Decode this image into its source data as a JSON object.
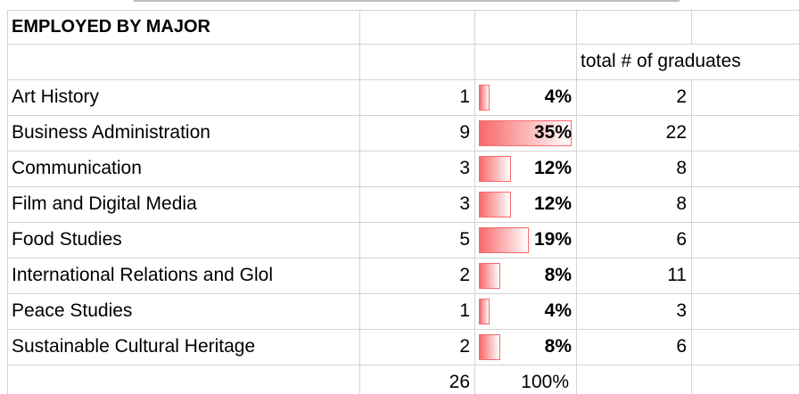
{
  "table": {
    "title": "EMPLOYED BY MAJOR",
    "header": "total # of graduates",
    "rows": [
      {
        "major": "Art History",
        "employed": 1,
        "percent": {
          "value": 4,
          "label": "4%"
        },
        "total": 2
      },
      {
        "major": "Business Administration",
        "employed": 9,
        "percent": {
          "value": 35,
          "label": "35%"
        },
        "total": 22
      },
      {
        "major": "Communication",
        "employed": 3,
        "percent": {
          "value": 12,
          "label": "12%"
        },
        "total": 8
      },
      {
        "major": "Film and Digital Media",
        "employed": 3,
        "percent": {
          "value": 12,
          "label": "12%"
        },
        "total": 8
      },
      {
        "major": "Food Studies",
        "employed": 5,
        "percent": {
          "value": 19,
          "label": "19%"
        },
        "total": 6
      },
      {
        "major": "International Relations and Glol",
        "employed": 2,
        "percent": {
          "value": 8,
          "label": "8%"
        },
        "total": 11
      },
      {
        "major": "Peace Studies",
        "employed": 1,
        "percent": {
          "value": 4,
          "label": "4%"
        },
        "total": 3
      },
      {
        "major": "Sustainable Cultural Heritage",
        "employed": 2,
        "percent": {
          "value": 8,
          "label": "8%"
        },
        "total": 6
      }
    ],
    "totals": {
      "employed": 26,
      "percent": {
        "value": 100,
        "label": "100%"
      }
    }
  }
}
